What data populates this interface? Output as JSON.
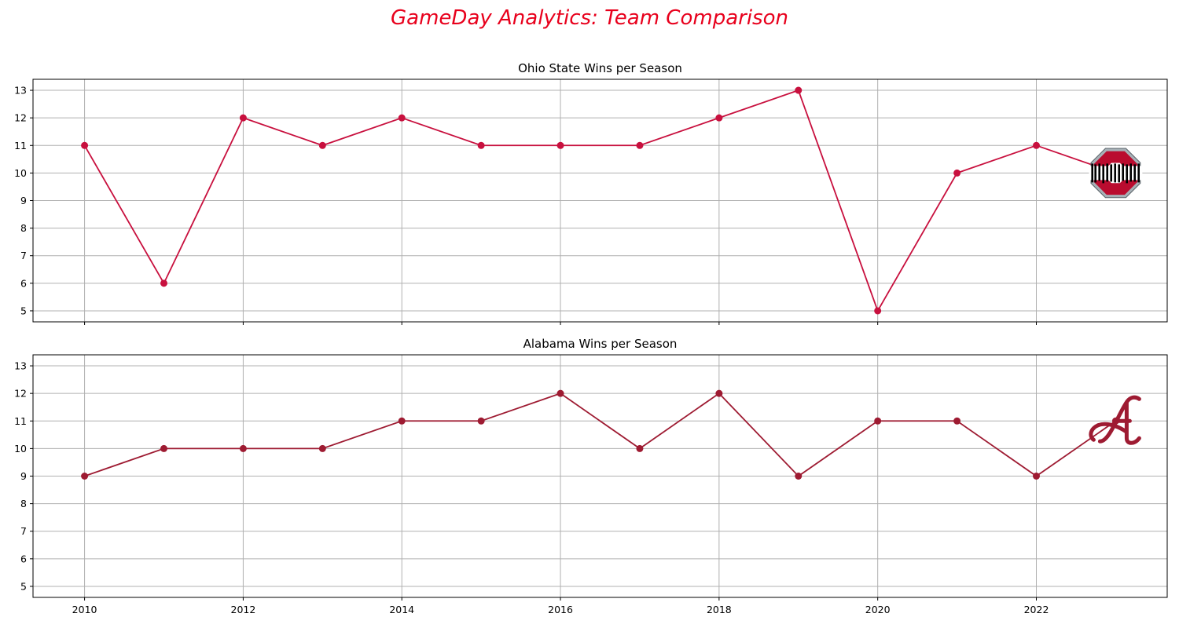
{
  "figure": {
    "title": "GameDay Analytics: Team Comparison",
    "title_color": "#e8001c"
  },
  "chart_data": [
    {
      "type": "line",
      "title": "Ohio State Wins per Season",
      "xlabel": "",
      "ylabel": "",
      "x": [
        2010,
        2011,
        2012,
        2013,
        2014,
        2015,
        2016,
        2017,
        2018,
        2019,
        2020,
        2021,
        2022,
        2023
      ],
      "series": [
        {
          "values": [
            11,
            6,
            12,
            11,
            12,
            11,
            11,
            11,
            12,
            13,
            5,
            10,
            11,
            10
          ],
          "color": "#c8103e"
        }
      ],
      "xlim": [
        2009.35,
        2023.65
      ],
      "ylim": [
        4.6,
        13.4
      ],
      "xticks": [
        2010,
        2012,
        2014,
        2016,
        2018,
        2020,
        2022
      ],
      "yticks": [
        5,
        6,
        7,
        8,
        9,
        10,
        11,
        12,
        13
      ],
      "show_xtick_labels": false,
      "grid": true,
      "logo": "ohio-state-block-o-logo"
    },
    {
      "type": "line",
      "title": "Alabama Wins per Season",
      "xlabel": "",
      "ylabel": "",
      "x": [
        2010,
        2011,
        2012,
        2013,
        2014,
        2015,
        2016,
        2017,
        2018,
        2019,
        2020,
        2021,
        2022,
        2023
      ],
      "series": [
        {
          "values": [
            9,
            10,
            10,
            10,
            11,
            11,
            12,
            10,
            12,
            9,
            11,
            11,
            9,
            11
          ],
          "color": "#9e1b32"
        }
      ],
      "xlim": [
        2009.35,
        2023.65
      ],
      "ylim": [
        4.6,
        13.4
      ],
      "xticks": [
        2010,
        2012,
        2014,
        2016,
        2018,
        2020,
        2022
      ],
      "yticks": [
        5,
        6,
        7,
        8,
        9,
        10,
        11,
        12,
        13
      ],
      "show_xtick_labels": true,
      "grid": true,
      "logo": "alabama-script-a-logo"
    }
  ]
}
